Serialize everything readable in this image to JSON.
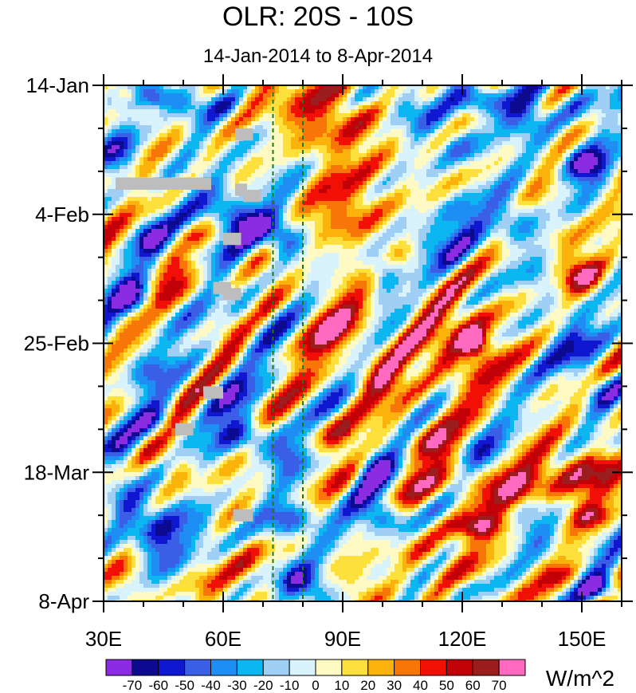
{
  "chart_data": {
    "type": "heatmap",
    "title": "OLR: 20S - 10S",
    "subtitle": "14-Jan-2014 to 8-Apr-2014",
    "x_range": [
      30,
      160
    ],
    "x_ticks": [
      {
        "value": 30,
        "label": "30E"
      },
      {
        "value": 60,
        "label": "60E"
      },
      {
        "value": 90,
        "label": "90E"
      },
      {
        "value": 120,
        "label": "120E"
      },
      {
        "value": 150,
        "label": "150E"
      }
    ],
    "y_range_days": [
      0,
      84
    ],
    "y_ticks": [
      {
        "value": 0,
        "label": "14-Jan"
      },
      {
        "value": 21,
        "label": "4-Feb"
      },
      {
        "value": 42,
        "label": "25-Feb"
      },
      {
        "value": 63,
        "label": "18-Mar"
      },
      {
        "value": 84,
        "label": "8-Apr"
      }
    ],
    "reference_lines_lon": [
      72.5,
      80
    ],
    "colorbar": {
      "unit": "W/m^2",
      "levels": [
        -70,
        -60,
        -50,
        -40,
        -30,
        -20,
        -10,
        0,
        10,
        20,
        30,
        40,
        50,
        60,
        70
      ],
      "colors": [
        "#8b2be2",
        "#0c0a8f",
        "#0f17d1",
        "#3a5fe6",
        "#1f8ef4",
        "#0cb6f0",
        "#9fcff5",
        "#d8f3fb",
        "#fff9c4",
        "#fde03b",
        "#fbb20b",
        "#f87508",
        "#f20f05",
        "#c20008",
        "#9b1d1d",
        "#ff69c0"
      ]
    },
    "anomalies": [
      {
        "lon": 36,
        "day": 1.5,
        "r_lon": 3,
        "r_day": 1.2,
        "v": 30
      },
      {
        "lon": 44,
        "day": 2,
        "r_lon": 6,
        "r_day": 2,
        "v": -55
      },
      {
        "lon": 53,
        "day": 4,
        "r_lon": 5,
        "r_day": 2.5,
        "v": -35
      },
      {
        "lon": 60,
        "day": 3,
        "r_lon": 4,
        "r_day": 2,
        "v": -25
      },
      {
        "lon": 78,
        "day": 4,
        "r_lon": 10,
        "r_day": 6,
        "v": 30
      },
      {
        "lon": 92,
        "day": 6,
        "r_lon": 9,
        "r_day": 9,
        "v": 25
      },
      {
        "lon": 98,
        "day": 2,
        "r_lon": 4,
        "r_day": 2,
        "v": -15
      },
      {
        "lon": 107,
        "day": 4,
        "r_lon": 6,
        "r_day": 3,
        "v": -40
      },
      {
        "lon": 125,
        "day": 2.5,
        "r_lon": 7,
        "r_day": 2.5,
        "v": -60
      },
      {
        "lon": 136,
        "day": 5,
        "r_lon": 6,
        "r_day": 4,
        "v": -40
      },
      {
        "lon": 150,
        "day": 3,
        "r_lon": 6,
        "r_day": 4,
        "v": -30
      },
      {
        "lon": 151,
        "day": 13,
        "r_lon": 6,
        "r_day": 3,
        "v": -65
      },
      {
        "lon": 120,
        "day": 10,
        "r_lon": 6,
        "r_day": 3,
        "v": -35
      },
      {
        "lon": 35,
        "day": 12,
        "r_lon": 5,
        "r_day": 4,
        "v": -45
      },
      {
        "lon": 40,
        "day": 15,
        "r_lon": 4,
        "r_day": 2,
        "v": 20
      },
      {
        "lon": 65,
        "day": 22,
        "r_lon": 6,
        "r_day": 3,
        "v": -60
      },
      {
        "lon": 75,
        "day": 25,
        "r_lon": 5,
        "r_day": 3,
        "v": -70
      },
      {
        "lon": 58,
        "day": 20,
        "r_lon": 6,
        "r_day": 5,
        "v": -40
      },
      {
        "lon": 52,
        "day": 27,
        "r_lon": 4,
        "r_day": 2,
        "v": -30
      },
      {
        "lon": 42,
        "day": 25,
        "r_lon": 4,
        "r_day": 3,
        "v": -40
      },
      {
        "lon": 75,
        "day": 12,
        "r_lon": 8,
        "r_day": 8,
        "v": -20
      },
      {
        "lon": 90,
        "day": 20,
        "r_lon": 8,
        "r_day": 5,
        "v": 30
      },
      {
        "lon": 100,
        "day": 30,
        "r_lon": 4,
        "r_day": 3,
        "v": -55
      },
      {
        "lon": 113,
        "day": 26,
        "r_lon": 7,
        "r_day": 3,
        "v": -45
      },
      {
        "lon": 120,
        "day": 22,
        "r_lon": 6,
        "r_day": 4,
        "v": -40
      },
      {
        "lon": 133,
        "day": 22,
        "r_lon": 6,
        "r_day": 4,
        "v": -45
      },
      {
        "lon": 145,
        "day": 24,
        "r_lon": 5,
        "r_day": 4,
        "v": 25
      },
      {
        "lon": 150,
        "day": 31,
        "r_lon": 6,
        "r_day": 3,
        "v": 55
      },
      {
        "lon": 140,
        "day": 32,
        "r_lon": 5,
        "r_day": 3,
        "v": -20
      },
      {
        "lon": 38,
        "day": 35,
        "r_lon": 5,
        "r_day": 3,
        "v": -60
      },
      {
        "lon": 50,
        "day": 32,
        "r_lon": 8,
        "r_day": 4,
        "v": 20
      },
      {
        "lon": 66,
        "day": 37,
        "r_lon": 5,
        "r_day": 3,
        "v": -30
      },
      {
        "lon": 88,
        "day": 40,
        "r_lon": 10,
        "r_day": 6,
        "v": 35
      },
      {
        "lon": 100,
        "day": 36,
        "r_lon": 6,
        "r_day": 3,
        "v": -20
      },
      {
        "lon": 120,
        "day": 42,
        "r_lon": 10,
        "r_day": 7,
        "v": 55
      },
      {
        "lon": 123,
        "day": 42,
        "r_lon": 3,
        "r_day": 2,
        "v": 60
      },
      {
        "lon": 148,
        "day": 42,
        "r_lon": 8,
        "r_day": 5,
        "v": -40
      },
      {
        "lon": 155,
        "day": 50,
        "r_lon": 5,
        "r_day": 3,
        "v": -35
      },
      {
        "lon": 40,
        "day": 46,
        "r_lon": 6,
        "r_day": 3,
        "v": -35
      },
      {
        "lon": 60,
        "day": 50,
        "r_lon": 6,
        "r_day": 4,
        "v": -30
      },
      {
        "lon": 43,
        "day": 55,
        "r_lon": 5,
        "r_day": 3,
        "v": -40
      },
      {
        "lon": 100,
        "day": 48,
        "r_lon": 6,
        "r_day": 3,
        "v": 30
      },
      {
        "lon": 112,
        "day": 58,
        "r_lon": 6,
        "r_day": 3,
        "v": 30
      },
      {
        "lon": 65,
        "day": 57,
        "r_lon": 7,
        "r_day": 3,
        "v": -55
      },
      {
        "lon": 75,
        "day": 60,
        "r_lon": 5,
        "r_day": 3,
        "v": -40
      },
      {
        "lon": 88,
        "day": 57,
        "r_lon": 6,
        "r_day": 3,
        "v": 35
      },
      {
        "lon": 98,
        "day": 62,
        "r_lon": 5,
        "r_day": 3,
        "v": -55
      },
      {
        "lon": 138,
        "day": 65,
        "r_lon": 22,
        "r_day": 3,
        "v": 50
      },
      {
        "lon": 150,
        "day": 62,
        "r_lon": 10,
        "r_day": 3,
        "v": 45
      },
      {
        "lon": 125,
        "day": 60,
        "r_lon": 7,
        "r_day": 3,
        "v": -30
      },
      {
        "lon": 35,
        "day": 60,
        "r_lon": 4,
        "r_day": 4,
        "v": -30
      },
      {
        "lon": 48,
        "day": 62,
        "r_lon": 4,
        "r_day": 3,
        "v": 30
      },
      {
        "lon": 45,
        "day": 74,
        "r_lon": 7,
        "r_day": 5,
        "v": -60
      },
      {
        "lon": 36,
        "day": 68,
        "r_lon": 5,
        "r_day": 4,
        "v": -40
      },
      {
        "lon": 55,
        "day": 72,
        "r_lon": 5,
        "r_day": 3,
        "v": -30
      },
      {
        "lon": 78,
        "day": 71,
        "r_lon": 7,
        "r_day": 3,
        "v": -55
      },
      {
        "lon": 100,
        "day": 70,
        "r_lon": 6,
        "r_day": 3,
        "v": -65
      },
      {
        "lon": 125,
        "day": 72,
        "r_lon": 8,
        "r_day": 2,
        "v": 50
      },
      {
        "lon": 110,
        "day": 76,
        "r_lon": 6,
        "r_day": 3,
        "v": 25
      },
      {
        "lon": 140,
        "day": 74,
        "r_lon": 6,
        "r_day": 3,
        "v": -30
      },
      {
        "lon": 152,
        "day": 70,
        "r_lon": 5,
        "r_day": 2,
        "v": 40
      },
      {
        "lon": 80,
        "day": 81,
        "r_lon": 7,
        "r_day": 3,
        "v": -75
      },
      {
        "lon": 66,
        "day": 78,
        "r_lon": 7,
        "r_day": 4,
        "v": 30
      },
      {
        "lon": 55,
        "day": 81,
        "r_lon": 6,
        "r_day": 3,
        "v": 25
      },
      {
        "lon": 92,
        "day": 82,
        "r_lon": 7,
        "r_day": 3,
        "v": 30
      },
      {
        "lon": 120,
        "day": 82,
        "r_lon": 6,
        "r_day": 2,
        "v": -20
      },
      {
        "lon": 155,
        "day": 82,
        "r_lon": 5,
        "r_day": 2,
        "v": -65
      },
      {
        "lon": 145,
        "day": 80,
        "r_lon": 5,
        "r_day": 2,
        "v": 25
      },
      {
        "lon": 35,
        "day": 80,
        "r_lon": 5,
        "r_day": 3,
        "v": 20
      }
    ],
    "missing_data": [
      {
        "lon0": 63,
        "lon1": 67.5,
        "day0": 7,
        "day1": 9
      },
      {
        "lon0": 33,
        "lon1": 57,
        "day0": 15,
        "day1": 17
      },
      {
        "lon0": 63,
        "lon1": 66,
        "day0": 16,
        "day1": 18
      },
      {
        "lon0": 65,
        "lon1": 69.5,
        "day0": 17,
        "day1": 19
      },
      {
        "lon0": 60,
        "lon1": 64.5,
        "day0": 24,
        "day1": 26
      },
      {
        "lon0": 57.5,
        "lon1": 62,
        "day0": 32,
        "day1": 34
      },
      {
        "lon0": 60,
        "lon1": 64.5,
        "day0": 33,
        "day1": 35
      },
      {
        "lon0": 55,
        "lon1": 60,
        "day0": 49,
        "day1": 51
      },
      {
        "lon0": 48,
        "lon1": 52.5,
        "day0": 55,
        "day1": 57
      },
      {
        "lon0": 62.5,
        "lon1": 67.5,
        "day0": 69,
        "day1": 71
      }
    ]
  }
}
